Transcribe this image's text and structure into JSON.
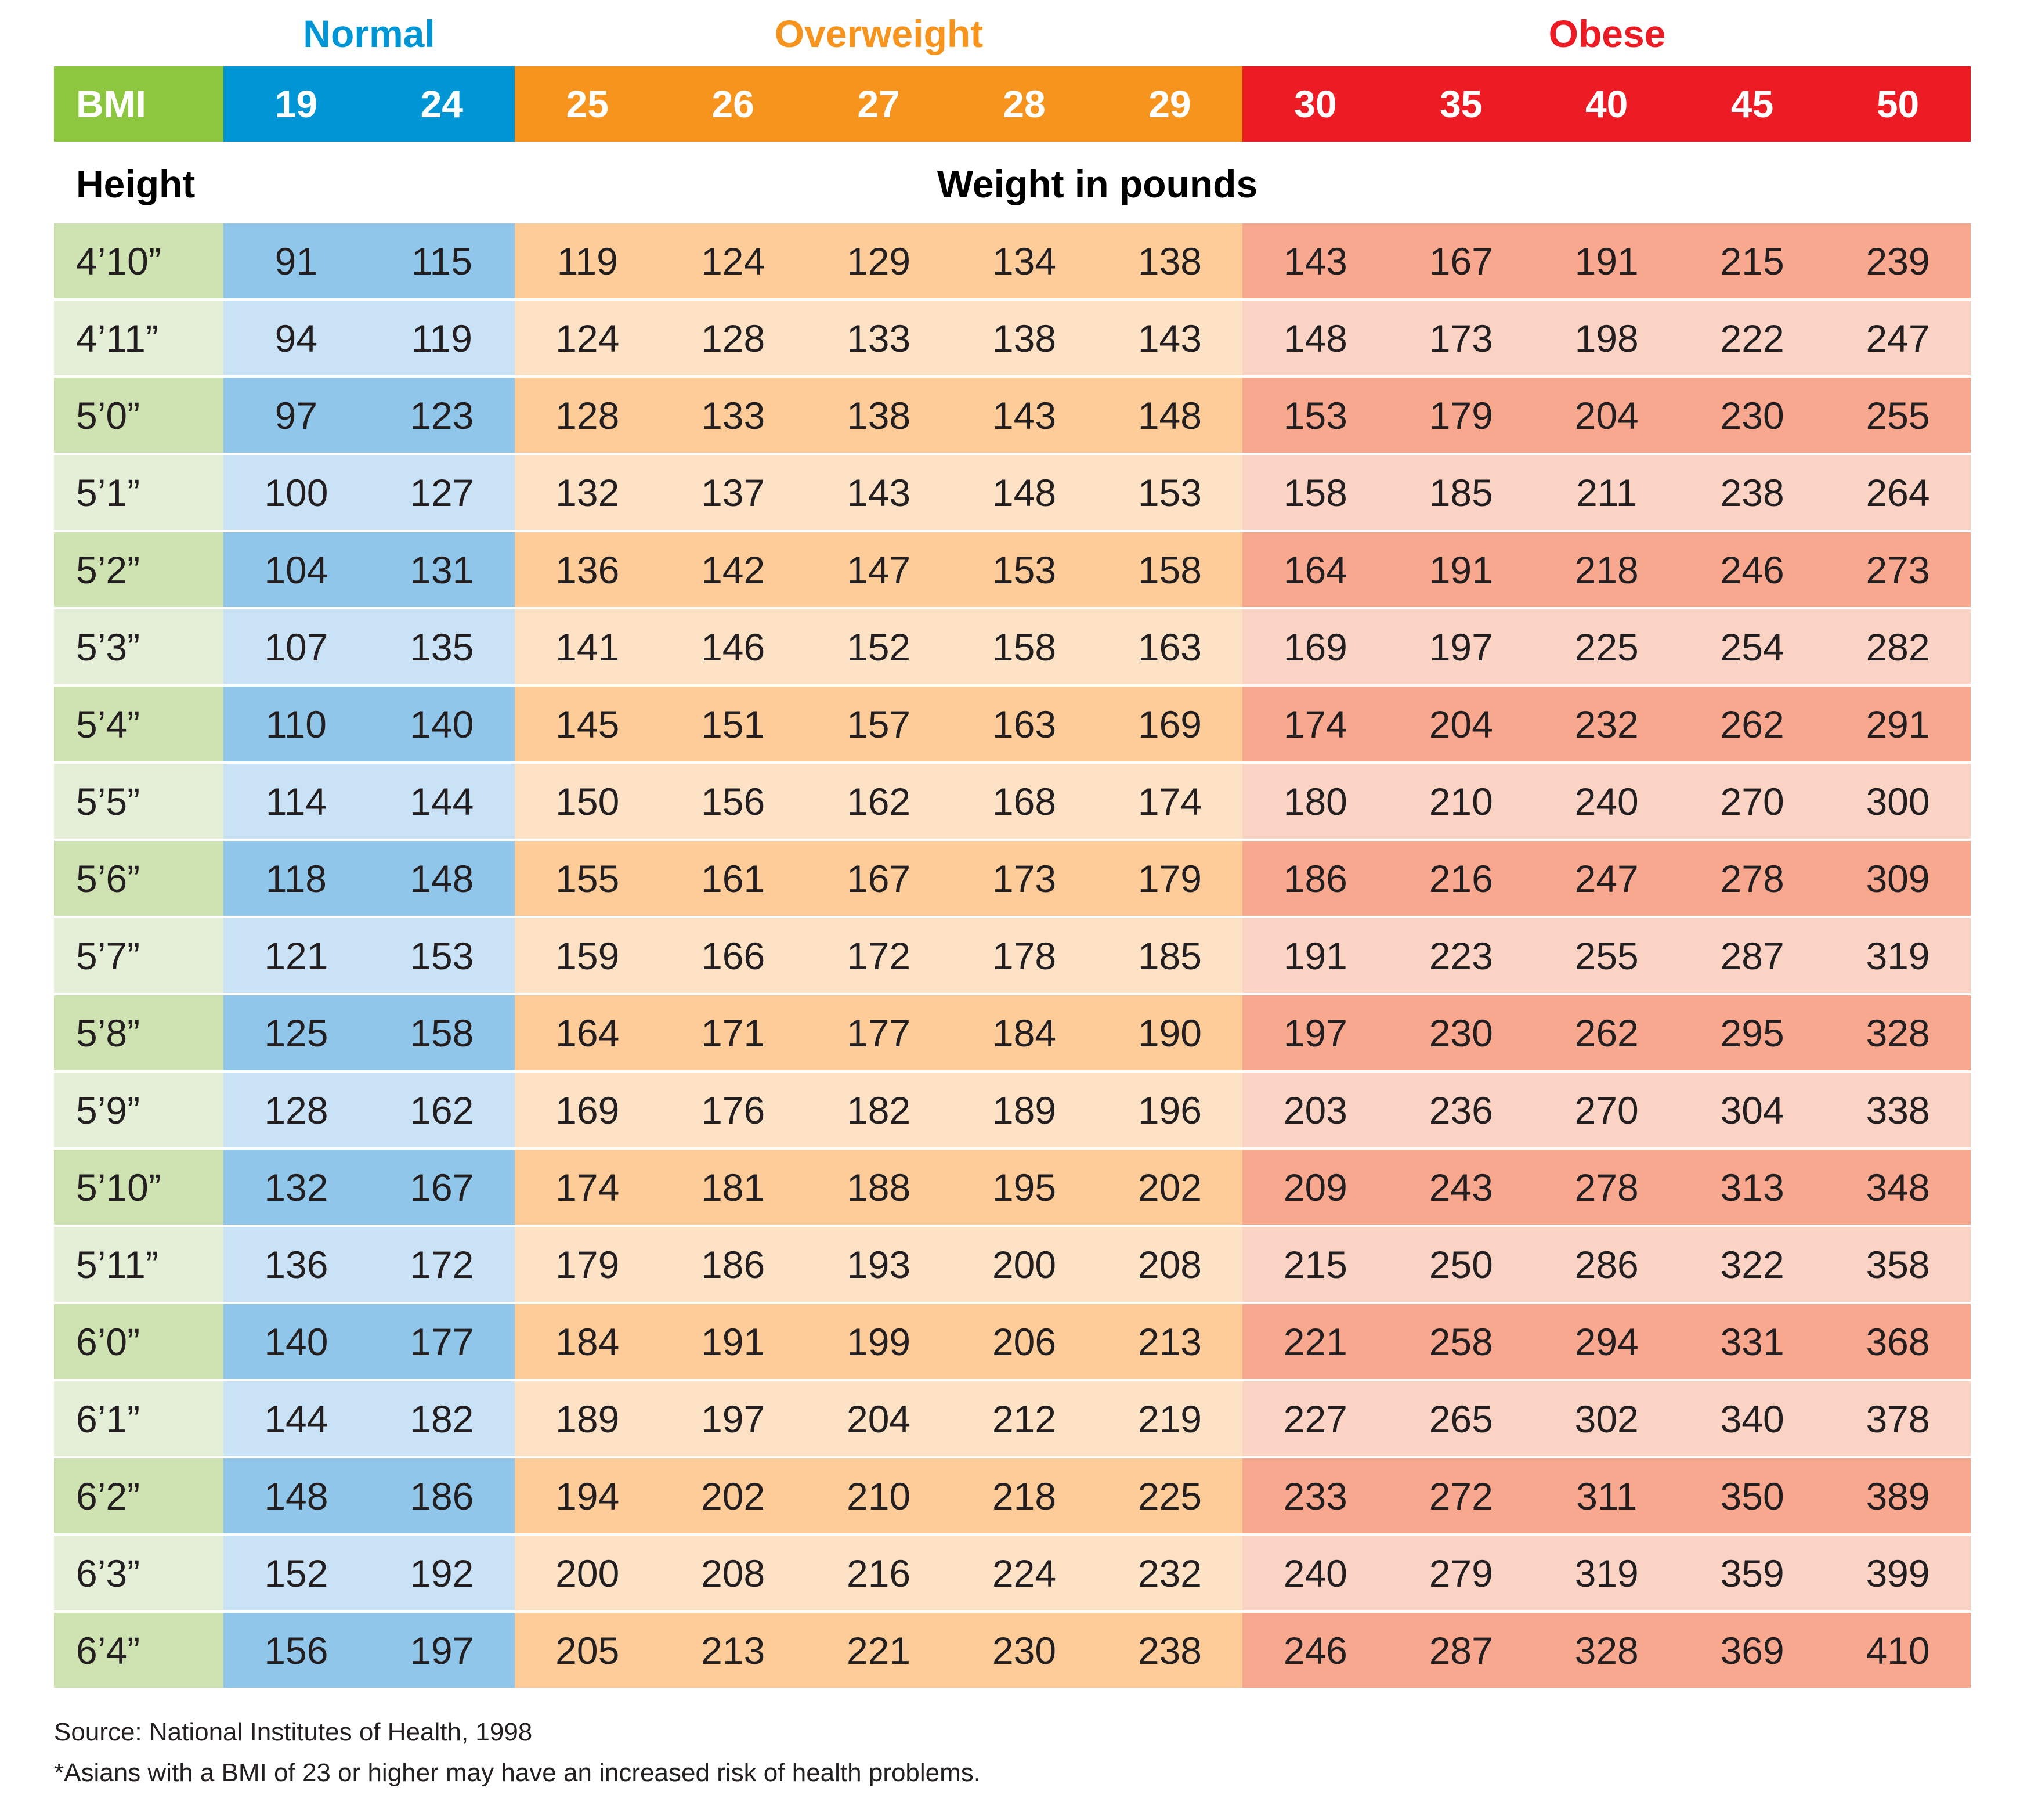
{
  "categories": [
    {
      "name": "Normal",
      "color": "#0096d6"
    },
    {
      "name": "Overweight",
      "color": "#f7941d"
    },
    {
      "name": "Obese",
      "color": "#ed1c24"
    }
  ],
  "header": {
    "bmi_label": "BMI",
    "height_label": "Height",
    "weight_label": "Weight in pounds"
  },
  "colors": {
    "green_head": "#8dc63f",
    "green_dark": "#cfe3b2",
    "green_light": "#e5efd8",
    "blue_head": "#0096d6",
    "blue_dark": "#91c6eb",
    "blue_light": "#c9e2f5",
    "orange_head": "#f7941d",
    "orange_dark": "#fdcc99",
    "orange_light": "#fee2c6",
    "red_head": "#ed1c24",
    "red_dark": "#f7a88f",
    "red_light": "#fad3c4"
  },
  "chart_data": {
    "type": "table",
    "bmi_values": [
      "19",
      "24",
      "25",
      "26",
      "27",
      "28",
      "29",
      "30",
      "35",
      "40",
      "45",
      "50"
    ],
    "bmi_category": [
      "Normal",
      "Normal",
      "Overweight",
      "Overweight",
      "Overweight",
      "Overweight",
      "Overweight",
      "Obese",
      "Obese",
      "Obese",
      "Obese",
      "Obese"
    ],
    "rows": [
      {
        "height": "4’10”",
        "weights": [
          "91",
          "115",
          "119",
          "124",
          "129",
          "134",
          "138",
          "143",
          "167",
          "191",
          "215",
          "239"
        ]
      },
      {
        "height": "4’11”",
        "weights": [
          "94",
          "119",
          "124",
          "128",
          "133",
          "138",
          "143",
          "148",
          "173",
          "198",
          "222",
          "247"
        ]
      },
      {
        "height": "5’0”",
        "weights": [
          "97",
          "123",
          "128",
          "133",
          "138",
          "143",
          "148",
          "153",
          "179",
          "204",
          "230",
          "255"
        ]
      },
      {
        "height": "5’1”",
        "weights": [
          "100",
          "127",
          "132",
          "137",
          "143",
          "148",
          "153",
          "158",
          "185",
          "211",
          "238",
          "264"
        ]
      },
      {
        "height": "5’2”",
        "weights": [
          "104",
          "131",
          "136",
          "142",
          "147",
          "153",
          "158",
          "164",
          "191",
          "218",
          "246",
          "273"
        ]
      },
      {
        "height": "5’3”",
        "weights": [
          "107",
          "135",
          "141",
          "146",
          "152",
          "158",
          "163",
          "169",
          "197",
          "225",
          "254",
          "282"
        ]
      },
      {
        "height": "5’4”",
        "weights": [
          "110",
          "140",
          "145",
          "151",
          "157",
          "163",
          "169",
          "174",
          "204",
          "232",
          "262",
          "291"
        ]
      },
      {
        "height": "5’5”",
        "weights": [
          "114",
          "144",
          "150",
          "156",
          "162",
          "168",
          "174",
          "180",
          "210",
          "240",
          "270",
          "300"
        ]
      },
      {
        "height": "5’6”",
        "weights": [
          "118",
          "148",
          "155",
          "161",
          "167",
          "173",
          "179",
          "186",
          "216",
          "247",
          "278",
          "309"
        ]
      },
      {
        "height": "5’7”",
        "weights": [
          "121",
          "153",
          "159",
          "166",
          "172",
          "178",
          "185",
          "191",
          "223",
          "255",
          "287",
          "319"
        ]
      },
      {
        "height": "5’8”",
        "weights": [
          "125",
          "158",
          "164",
          "171",
          "177",
          "184",
          "190",
          "197",
          "230",
          "262",
          "295",
          "328"
        ]
      },
      {
        "height": "5’9”",
        "weights": [
          "128",
          "162",
          "169",
          "176",
          "182",
          "189",
          "196",
          "203",
          "236",
          "270",
          "304",
          "338"
        ]
      },
      {
        "height": "5’10”",
        "weights": [
          "132",
          "167",
          "174",
          "181",
          "188",
          "195",
          "202",
          "209",
          "243",
          "278",
          "313",
          "348"
        ]
      },
      {
        "height": "5’11”",
        "weights": [
          "136",
          "172",
          "179",
          "186",
          "193",
          "200",
          "208",
          "215",
          "250",
          "286",
          "322",
          "358"
        ]
      },
      {
        "height": "6’0”",
        "weights": [
          "140",
          "177",
          "184",
          "191",
          "199",
          "206",
          "213",
          "221",
          "258",
          "294",
          "331",
          "368"
        ]
      },
      {
        "height": "6’1”",
        "weights": [
          "144",
          "182",
          "189",
          "197",
          "204",
          "212",
          "219",
          "227",
          "265",
          "302",
          "340",
          "378"
        ]
      },
      {
        "height": "6’2”",
        "weights": [
          "148",
          "186",
          "194",
          "202",
          "210",
          "218",
          "225",
          "233",
          "272",
          "311",
          "350",
          "389"
        ]
      },
      {
        "height": "6’3”",
        "weights": [
          "152",
          "192",
          "200",
          "208",
          "216",
          "224",
          "232",
          "240",
          "279",
          "319",
          "359",
          "399"
        ]
      },
      {
        "height": "6’4”",
        "weights": [
          "156",
          "197",
          "205",
          "213",
          "221",
          "230",
          "238",
          "246",
          "287",
          "328",
          "369",
          "410"
        ]
      }
    ]
  },
  "footnotes": {
    "source": "Source: National Institutes of Health, 1998",
    "note": "*Asians with a BMI of 23 or higher may have an increased risk of health problems."
  }
}
